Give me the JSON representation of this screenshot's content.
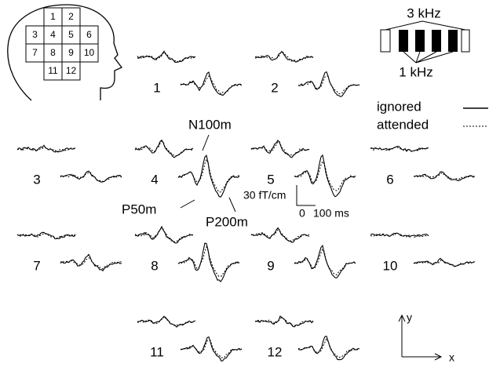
{
  "head_grid": [
    "1",
    "2",
    "3",
    "4",
    "5",
    "6",
    "7",
    "8",
    "9",
    "10",
    "11",
    "12"
  ],
  "stimulus": {
    "high": "3 kHz",
    "low": "1 kHz"
  },
  "legend": {
    "ignored": "ignored",
    "attended": "attended"
  },
  "channels": [
    "1",
    "2",
    "3",
    "4",
    "5",
    "6",
    "7",
    "8",
    "9",
    "10",
    "11",
    "12"
  ],
  "annotations": {
    "n100m": "N100m",
    "p50m": "P50m",
    "p200m": "P200m"
  },
  "scale": {
    "amplitude": "30 fT/cm",
    "time_start": "0",
    "time_end": "100 ms"
  },
  "axes": {
    "y": "y",
    "x": "x"
  }
}
